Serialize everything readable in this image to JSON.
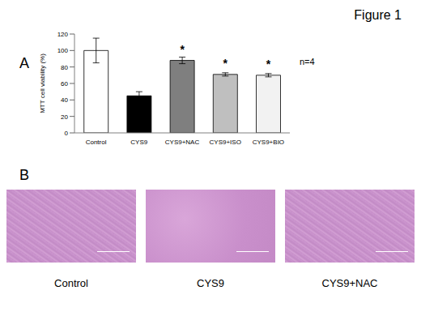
{
  "figure": {
    "title": "Figure 1"
  },
  "chart_data": {
    "type": "bar",
    "panel": "A",
    "annotation": "n=4",
    "y_label": "MTT cell viability (%)",
    "categories": [
      "Control",
      "CYS9",
      "CYS9+NAC",
      "CYS9+ISO",
      "CYS9+BIO"
    ],
    "values": [
      100,
      45,
      88,
      71,
      70
    ],
    "errors": [
      15,
      5,
      4,
      2,
      2
    ],
    "colors": [
      "#ffffff",
      "#000000",
      "#7f7f7f",
      "#bfbfbf",
      "#f2f2f2"
    ],
    "annotations": [
      {
        "category": "CYS9+NAC",
        "text": "*"
      },
      {
        "category": "CYS9+ISO",
        "text": "*"
      },
      {
        "category": "CYS9+BIO",
        "text": "*"
      }
    ],
    "ylim": [
      0,
      120
    ],
    "yticks": [
      0,
      20,
      40,
      60,
      80,
      100,
      120
    ]
  },
  "images": {
    "panel": "B",
    "labels": [
      "Control",
      "CYS9",
      "CYS9+NAC"
    ]
  }
}
